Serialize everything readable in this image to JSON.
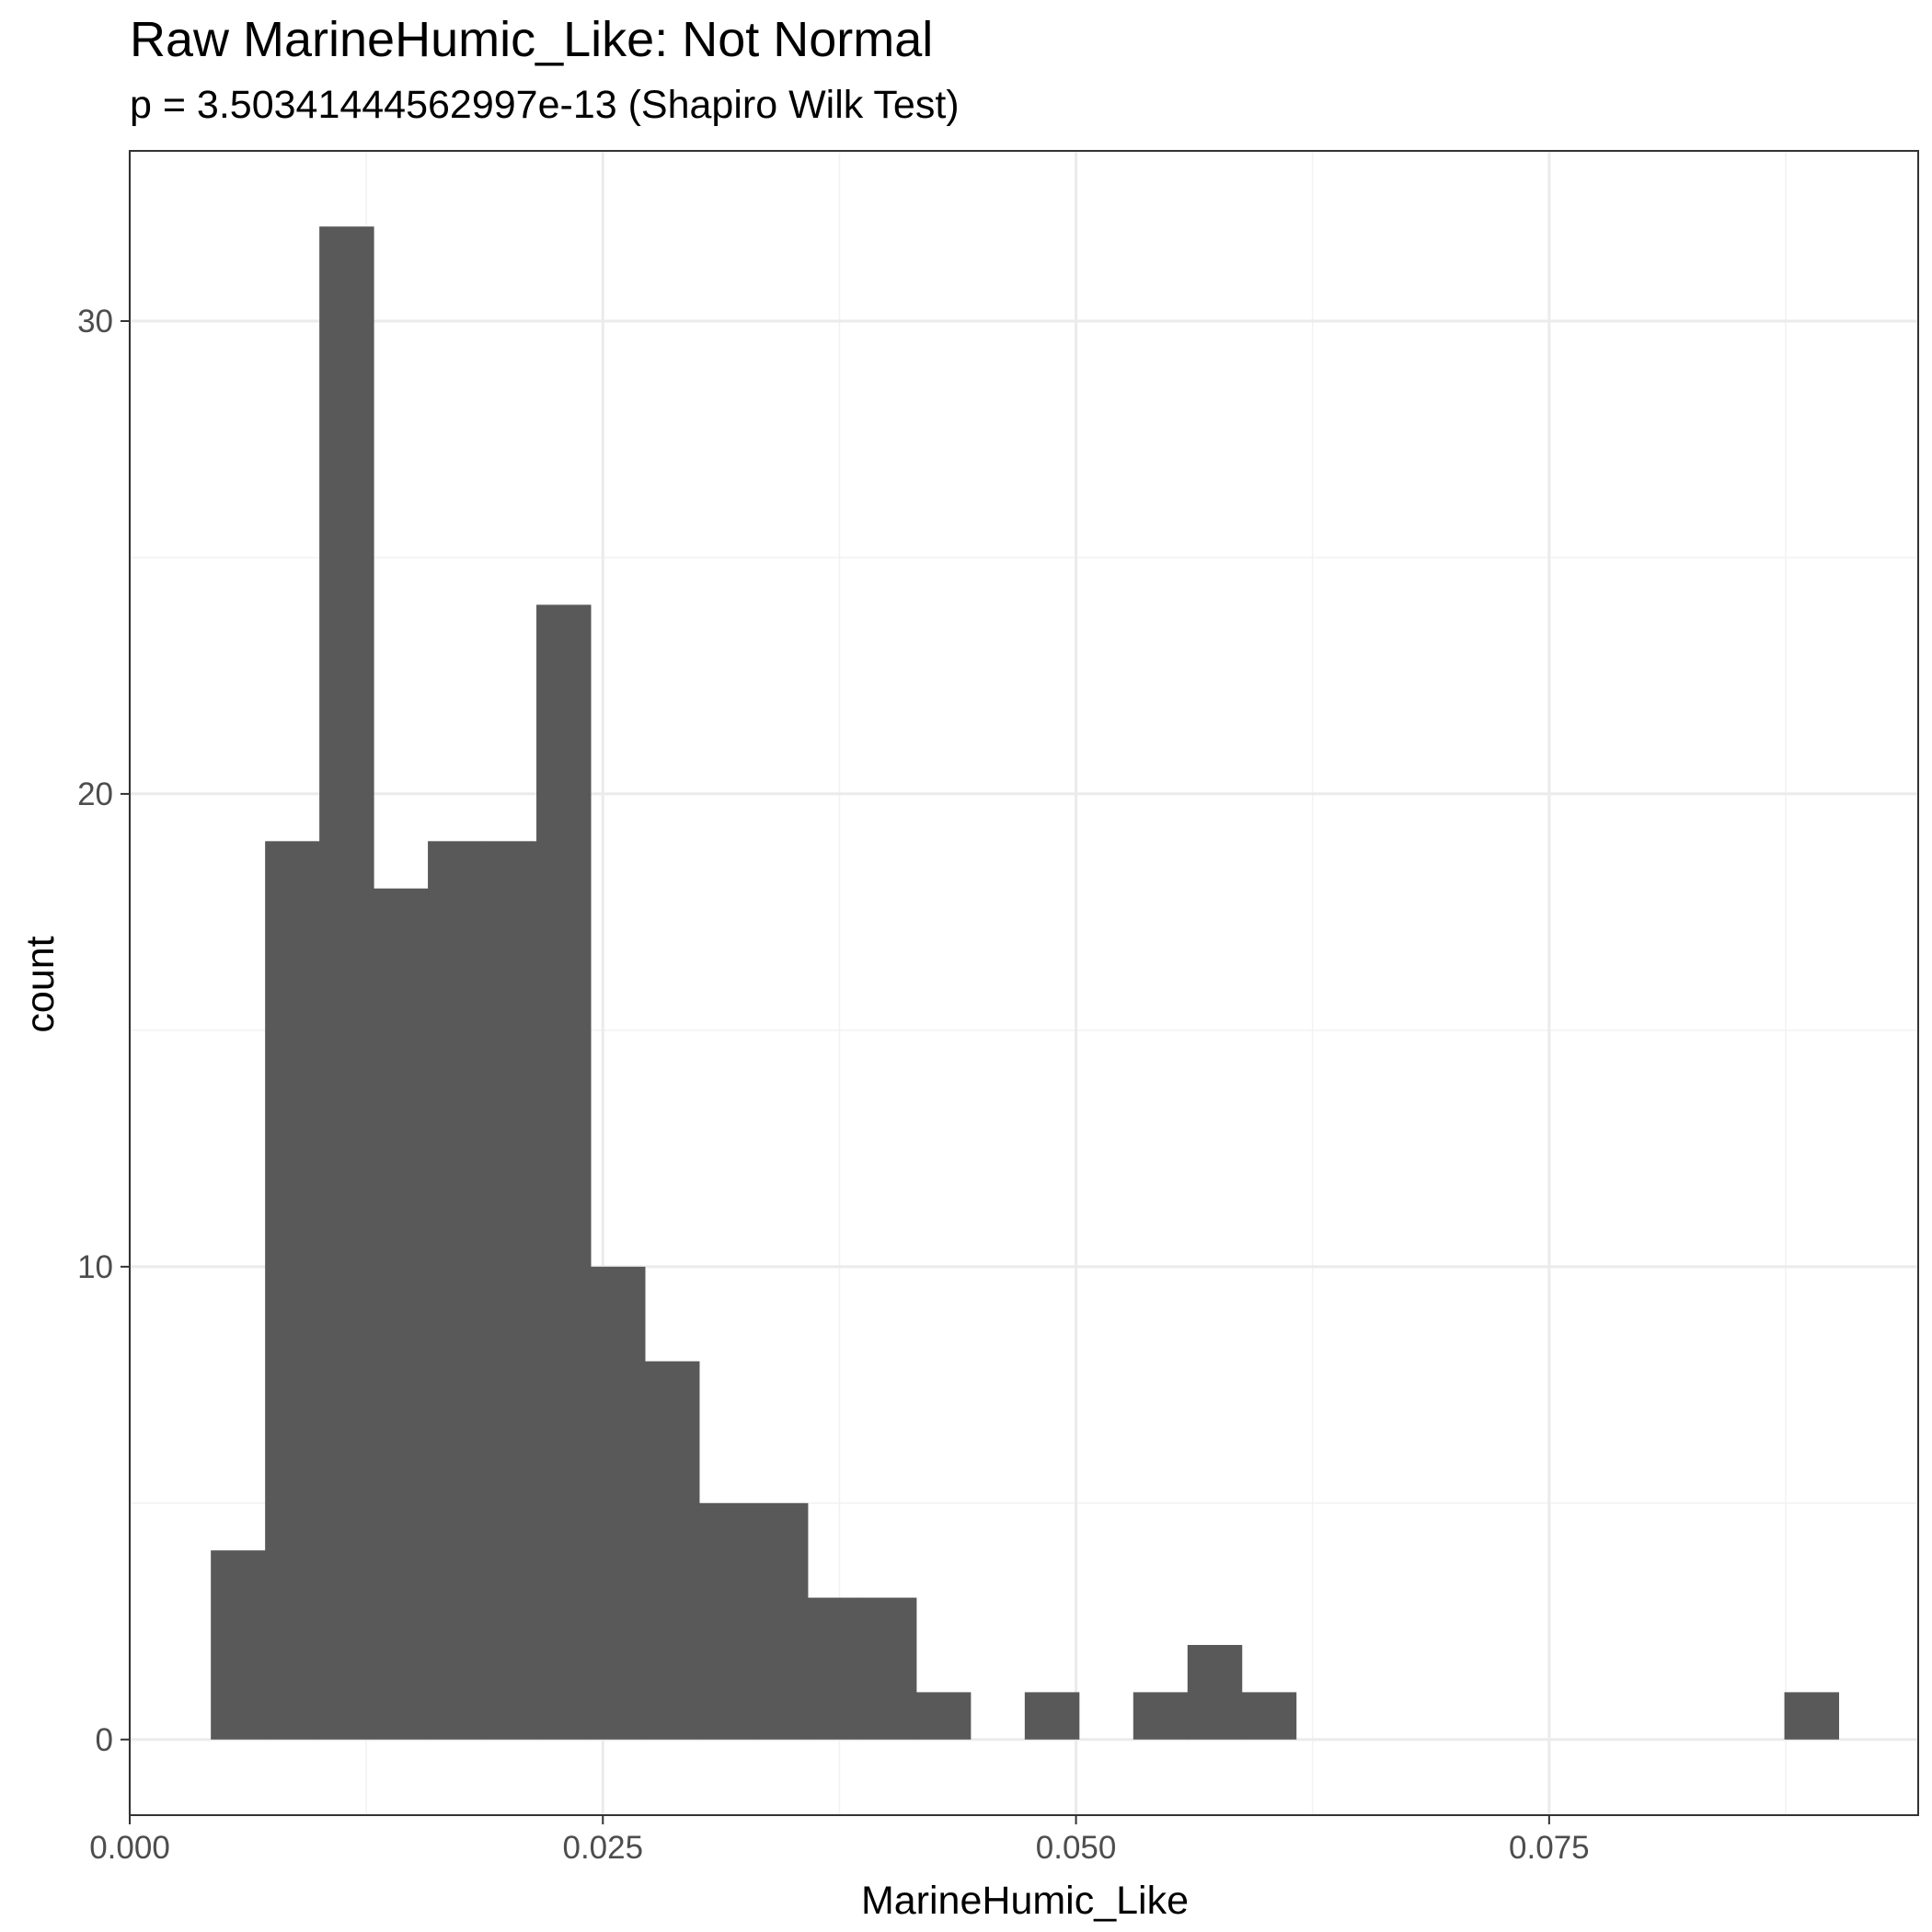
{
  "chart_data": {
    "type": "bar",
    "title": "Raw MarineHumic_Like: Not Normal",
    "subtitle": "p = 3.50341444562997e-13 (Shapiro Wilk Test)",
    "xlabel": "MarineHumic_Like",
    "ylabel": "count",
    "xlim": [
      0.0,
      0.0945
    ],
    "ylim": [
      -1.6,
      33.6
    ],
    "x_ticks": [
      {
        "value": 0.0,
        "label": "0.000"
      },
      {
        "value": 0.025,
        "label": "0.025"
      },
      {
        "value": 0.05,
        "label": "0.050"
      },
      {
        "value": 0.075,
        "label": "0.075"
      }
    ],
    "y_ticks": [
      {
        "value": 0,
        "label": "0"
      },
      {
        "value": 10,
        "label": "10"
      },
      {
        "value": 20,
        "label": "20"
      },
      {
        "value": 30,
        "label": "30"
      }
    ],
    "grid": true,
    "bin_width": 0.002867,
    "bins": [
      {
        "x0": 0.004286,
        "count": 4
      },
      {
        "x0": 0.007153,
        "count": 19
      },
      {
        "x0": 0.01002,
        "count": 32
      },
      {
        "x0": 0.012887,
        "count": 18
      },
      {
        "x0": 0.015754,
        "count": 19
      },
      {
        "x0": 0.018621,
        "count": 19
      },
      {
        "x0": 0.021488,
        "count": 24
      },
      {
        "x0": 0.024355,
        "count": 10
      },
      {
        "x0": 0.027222,
        "count": 8
      },
      {
        "x0": 0.030089,
        "count": 5
      },
      {
        "x0": 0.032956,
        "count": 5
      },
      {
        "x0": 0.035823,
        "count": 3
      },
      {
        "x0": 0.03869,
        "count": 3
      },
      {
        "x0": 0.041557,
        "count": 1
      },
      {
        "x0": 0.044424,
        "count": 0
      },
      {
        "x0": 0.047291,
        "count": 1
      },
      {
        "x0": 0.050158,
        "count": 0
      },
      {
        "x0": 0.053025,
        "count": 1
      },
      {
        "x0": 0.055892,
        "count": 2
      },
      {
        "x0": 0.058759,
        "count": 1
      },
      {
        "x0": 0.061626,
        "count": 0
      },
      {
        "x0": 0.064493,
        "count": 0
      },
      {
        "x0": 0.06736,
        "count": 0
      },
      {
        "x0": 0.070227,
        "count": 0
      },
      {
        "x0": 0.073094,
        "count": 0
      },
      {
        "x0": 0.075961,
        "count": 0
      },
      {
        "x0": 0.078828,
        "count": 0
      },
      {
        "x0": 0.081695,
        "count": 0
      },
      {
        "x0": 0.084562,
        "count": 0
      },
      {
        "x0": 0.087429,
        "count": 1
      }
    ],
    "colors": {
      "bar": "#595959",
      "panel_border": "#333333",
      "grid_major": "#ebebeb",
      "grid_minor": "#f2f2f2",
      "tick_text": "#4d4d4d"
    }
  }
}
